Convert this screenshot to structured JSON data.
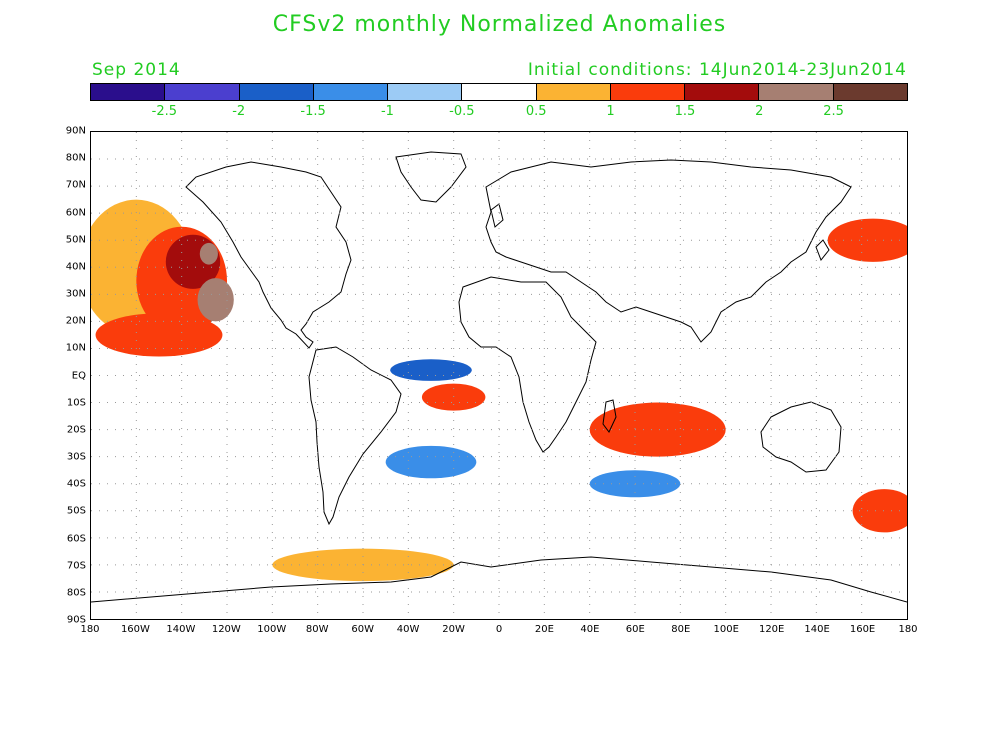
{
  "header": {
    "title": "CFSv2 monthly Normalized Anomalies",
    "month": "Sep 2014",
    "init": "Initial conditions: 14Jun2014-23Jun2014"
  },
  "colorbar": {
    "colors": [
      "#2a0e8c",
      "#4b3fcf",
      "#1a5fc8",
      "#3a8ee8",
      "#9ccbf5",
      "#ffffff",
      "#fbb333",
      "#fa3c0c",
      "#a30c0c",
      "#a67f72",
      "#6b3a2e"
    ],
    "labels": [
      "-2.5",
      "-2",
      "-1.5",
      "-1",
      "-0.5",
      "0.5",
      "1",
      "1.5",
      "2",
      "2.5"
    ]
  },
  "axes": {
    "lat_labels": [
      "90N",
      "80N",
      "70N",
      "60N",
      "50N",
      "40N",
      "30N",
      "20N",
      "10N",
      "EQ",
      "10S",
      "20S",
      "30S",
      "40S",
      "50S",
      "60S",
      "70S",
      "80S",
      "90S"
    ],
    "lon_labels": [
      "180",
      "160W",
      "140W",
      "120W",
      "100W",
      "80W",
      "60W",
      "40W",
      "20W",
      "0",
      "20E",
      "40E",
      "60E",
      "80E",
      "100E",
      "120E",
      "140E",
      "160E",
      "180"
    ]
  },
  "anomalies": [
    {
      "lon": -160,
      "lat": 40,
      "rx": 25,
      "ry": 25,
      "color": "#fbb333"
    },
    {
      "lon": -140,
      "lat": 35,
      "rx": 20,
      "ry": 20,
      "color": "#fa3c0c"
    },
    {
      "lon": -135,
      "lat": 42,
      "rx": 12,
      "ry": 10,
      "color": "#a30c0c"
    },
    {
      "lon": -128,
      "lat": 45,
      "rx": 4,
      "ry": 4,
      "color": "#a67f72"
    },
    {
      "lon": -125,
      "lat": 28,
      "rx": 8,
      "ry": 8,
      "color": "#a67f72"
    },
    {
      "lon": -150,
      "lat": 15,
      "rx": 28,
      "ry": 8,
      "color": "#fa3c0c"
    },
    {
      "lon": -30,
      "lat": 2,
      "rx": 18,
      "ry": 4,
      "color": "#1a5fc8"
    },
    {
      "lon": -30,
      "lat": -32,
      "rx": 20,
      "ry": 6,
      "color": "#3a8ee8"
    },
    {
      "lon": -20,
      "lat": -8,
      "rx": 14,
      "ry": 5,
      "color": "#fa3c0c"
    },
    {
      "lon": 70,
      "lat": -20,
      "rx": 30,
      "ry": 10,
      "color": "#fa3c0c"
    },
    {
      "lon": 165,
      "lat": 50,
      "rx": 20,
      "ry": 8,
      "color": "#fa3c0c"
    },
    {
      "lon": 170,
      "lat": -50,
      "rx": 14,
      "ry": 8,
      "color": "#fa3c0c"
    },
    {
      "lon": -60,
      "lat": -70,
      "rx": 40,
      "ry": 6,
      "color": "#fbb333"
    },
    {
      "lon": 60,
      "lat": -40,
      "rx": 20,
      "ry": 5,
      "color": "#3a8ee8"
    }
  ]
}
